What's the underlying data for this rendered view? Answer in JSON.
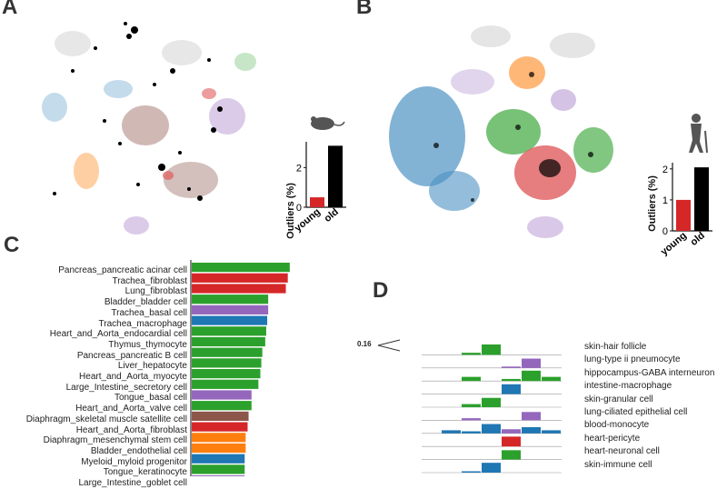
{
  "panels": {
    "a": "A",
    "b": "B",
    "c": "C",
    "d": "D"
  },
  "panel_a_inset": {
    "ylabel": "Outliers (%)",
    "ticks": [
      "0",
      "2"
    ],
    "categories": [
      "young",
      "old"
    ],
    "values": [
      0.5,
      3.1
    ],
    "ylim": [
      0,
      3.3
    ],
    "colors": [
      "#d62728",
      "#000000"
    ],
    "icon": "mouse-icon"
  },
  "panel_b_inset": {
    "ylabel": "Outliers (%)",
    "ticks": [
      "0",
      "1",
      "2"
    ],
    "categories": [
      "young",
      "old"
    ],
    "values": [
      1.0,
      2.05
    ],
    "ylim": [
      0,
      2.2
    ],
    "colors": [
      "#d62728",
      "#000000"
    ],
    "icon": "elderly-person-icon"
  },
  "chart_data": [
    {
      "type": "bar",
      "orientation": "horizontal",
      "categories": [
        "Pancreas_pancreatic acinar cell",
        "Trachea_fibroblast",
        "Lung_fibroblast",
        "Bladder_bladder cell",
        "Trachea_basal cell",
        "Trachea_macrophage",
        "Heart_and_Aorta_endocardial cell",
        "Thymus_thymocyte",
        "Pancreas_pancreatic B cell",
        "Liver_hepatocyte",
        "Heart_and_Aorta_myocyte",
        "Large_Intestine_secretory cell",
        "Tongue_basal cell",
        "Heart_and_Aorta_valve cell",
        "Diaphragm_skeletal muscle satellite cell",
        "Heart_and_Aorta_fibroblast",
        "Diaphragm_mesenchymal stem cell",
        "Bladder_endothelial cell",
        "Myeloid_myloid progenitor",
        "Tongue_keratinocyte",
        "Large_Intestine_goblet cell"
      ],
      "values": [
        1.0,
        0.98,
        0.96,
        0.78,
        0.78,
        0.77,
        0.76,
        0.75,
        0.72,
        0.71,
        0.7,
        0.68,
        0.61,
        0.61,
        0.58,
        0.57,
        0.55,
        0.55,
        0.54,
        0.54,
        0.54
      ],
      "colors": [
        "#2ca02c",
        "#d62728",
        "#d62728",
        "#2ca02c",
        "#9467bd",
        "#1f77b4",
        "#2ca02c",
        "#2ca02c",
        "#2ca02c",
        "#2ca02c",
        "#2ca02c",
        "#2ca02c",
        "#9467bd",
        "#2ca02c",
        "#8c564b",
        "#d62728",
        "#ff7f0e",
        "#ff7f0e",
        "#1f77b4",
        "#2ca02c",
        "#9467bd"
      ],
      "xlim": [
        0,
        1.02
      ]
    },
    {
      "type": "heatmap",
      "annotation": "0.16",
      "rows": [
        "skin-hair follicle",
        "lung-type ii pneumocyte",
        "hippocampus-GABA interneuron",
        "intestine-macrophage",
        "skin-granular cell",
        "lung-ciliated epithelial cell",
        "blood-monocyte",
        "heart-pericyte",
        "heart-neuronal cell",
        "skin-immune cell"
      ],
      "columns": 8,
      "values": [
        [
          0,
          0,
          0,
          0.2,
          1.0,
          0,
          0,
          0
        ],
        [
          0,
          0,
          0,
          0,
          0,
          0.1,
          0.9,
          0
        ],
        [
          0,
          0,
          0,
          0.4,
          0,
          0.2,
          1.0,
          0.4
        ],
        [
          0,
          0,
          0,
          0,
          0,
          0.95,
          0,
          0
        ],
        [
          0,
          0,
          0,
          0.3,
          0.9,
          0,
          0,
          0
        ],
        [
          0,
          0,
          0,
          0.2,
          0,
          0,
          0.8,
          0
        ],
        [
          0,
          0,
          0.3,
          0.2,
          0.9,
          0.4,
          0.6,
          0.3
        ],
        [
          0,
          0,
          0,
          0,
          0,
          0.95,
          0,
          0
        ],
        [
          0,
          0,
          0,
          0,
          0,
          0.9,
          0,
          0
        ],
        [
          0,
          0,
          0,
          0.1,
          0.95,
          0,
          0,
          0
        ]
      ],
      "cell_colors": [
        [
          "",
          "",
          "",
          "#2ca02c",
          "#2ca02c",
          "",
          "",
          ""
        ],
        [
          "",
          "",
          "",
          "",
          "",
          "#9467bd",
          "#9467bd",
          ""
        ],
        [
          "",
          "",
          "",
          "#2ca02c",
          "",
          "#2ca02c",
          "#2ca02c",
          "#2ca02c"
        ],
        [
          "",
          "",
          "",
          "",
          "",
          "#1f77b4",
          "",
          ""
        ],
        [
          "",
          "",
          "",
          "#2ca02c",
          "#2ca02c",
          "",
          "",
          ""
        ],
        [
          "",
          "",
          "",
          "#9467bd",
          "",
          "",
          "#9467bd",
          ""
        ],
        [
          "",
          "",
          "#1f77b4",
          "#1f77b4",
          "#1f77b4",
          "#9467bd",
          "#1f77b4",
          "#1f77b4"
        ],
        [
          "",
          "",
          "",
          "",
          "",
          "#d62728",
          "",
          ""
        ],
        [
          "",
          "",
          "",
          "",
          "",
          "#2ca02c",
          "",
          ""
        ],
        [
          "",
          "",
          "",
          "#1f77b4",
          "#1f77b4",
          "",
          "",
          ""
        ]
      ]
    }
  ]
}
